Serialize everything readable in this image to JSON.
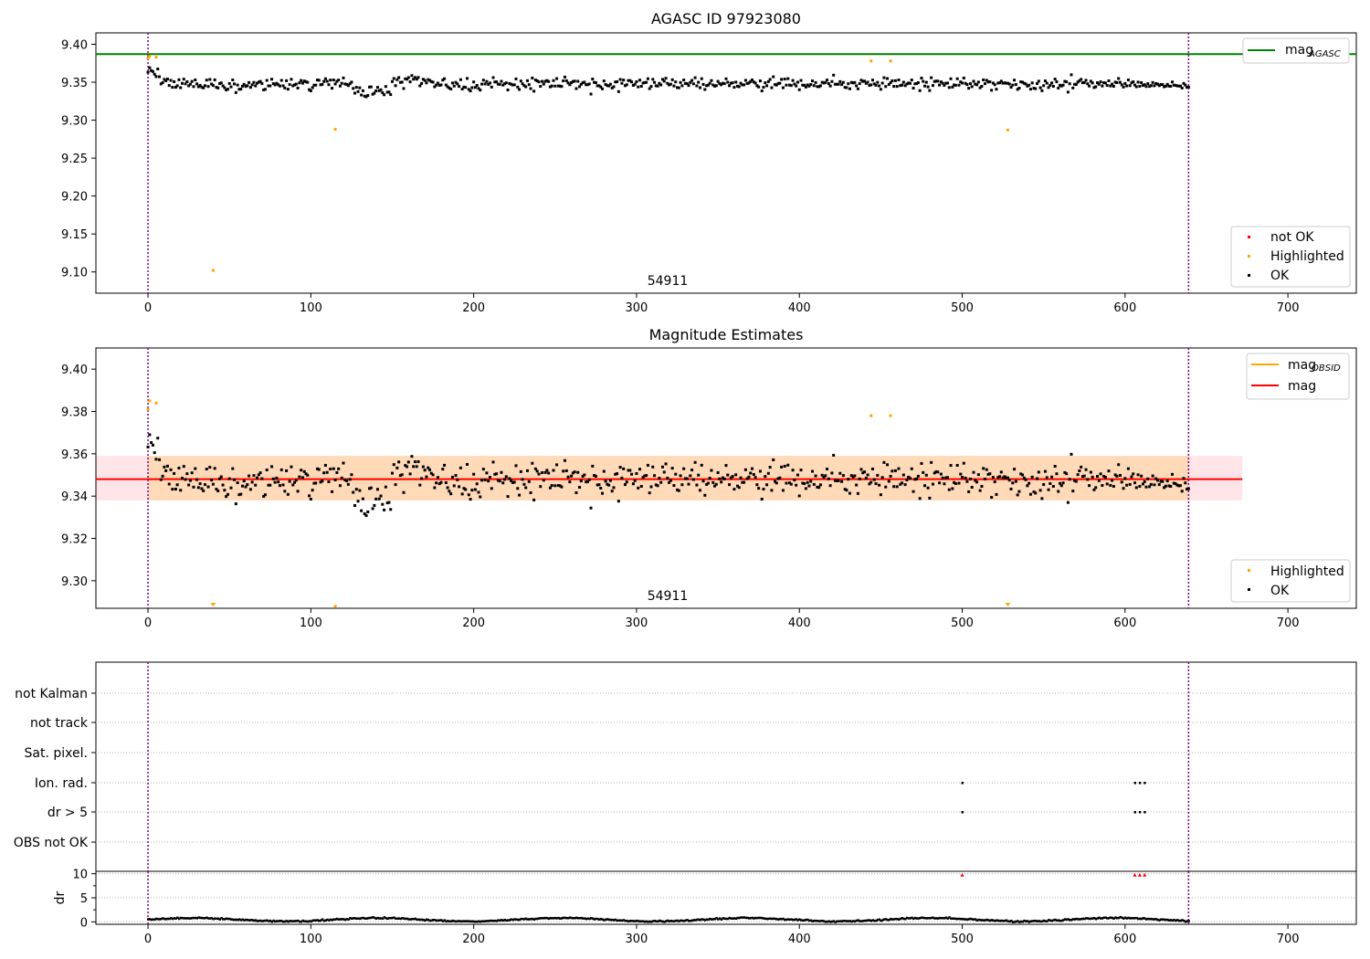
{
  "colors": {
    "ok": "#000000",
    "highlighted": "#ffa500",
    "not_ok": "#ff0000",
    "agasc_line": "#008000",
    "mag_line": "#ff0000",
    "obsid_line": "#ffa500",
    "band_orange": "#ffdab9",
    "band_pink": "#ffe4e8",
    "obs_boundary": "#800080",
    "grid": "#b0b0b0"
  },
  "chart_data": [
    {
      "type": "scatter",
      "title": "AGASC ID 97923080",
      "xlabel": "",
      "ylabel": "",
      "xlim": [
        -32,
        742
      ],
      "ylim": [
        9.072,
        9.415
      ],
      "xticks": [
        0,
        100,
        200,
        300,
        400,
        500,
        600,
        700
      ],
      "yticks": [
        9.1,
        9.15,
        9.2,
        9.25,
        9.3,
        9.35,
        9.4
      ],
      "ytick_labels": [
        "9.10",
        "9.15",
        "9.20",
        "9.25",
        "9.30",
        "9.35",
        "9.40"
      ],
      "annotation": {
        "text": "54911",
        "x": 319
      },
      "obs_boundaries": [
        0,
        639
      ],
      "reference_line": {
        "name": "mag",
        "name_sub": "AGASC",
        "y": 9.387
      },
      "legend_lines": [
        {
          "label": "mag",
          "sub": "AGASC",
          "color": "#008000"
        }
      ],
      "legend_points": [
        {
          "label": "not OK",
          "color": "#ff0000"
        },
        {
          "label": "Highlighted",
          "color": "#ffa500"
        },
        {
          "label": "OK",
          "color": "#000000"
        }
      ],
      "ok_points": {
        "n": 640,
        "x_range": [
          0,
          639
        ],
        "mean": 9.348,
        "scatter": 0.008
      },
      "highlighted_points": [
        [
          0,
          9.382
        ],
        [
          1,
          9.384
        ],
        [
          5,
          9.383
        ],
        [
          40,
          9.102
        ],
        [
          115,
          9.288
        ],
        [
          444,
          9.378
        ],
        [
          456,
          9.378
        ],
        [
          528,
          9.287
        ]
      ]
    },
    {
      "type": "scatter",
      "title": "Magnitude Estimates",
      "xlabel": "",
      "ylabel": "",
      "xlim": [
        -32,
        742
      ],
      "ylim": [
        9.287,
        9.41
      ],
      "xticks": [
        0,
        100,
        200,
        300,
        400,
        500,
        600,
        700
      ],
      "yticks": [
        9.3,
        9.32,
        9.34,
        9.36,
        9.38,
        9.4
      ],
      "ytick_labels": [
        "9.30",
        "9.32",
        "9.34",
        "9.36",
        "9.38",
        "9.40"
      ],
      "annotation": {
        "text": "54911",
        "x": 319
      },
      "obs_boundaries": [
        0,
        639
      ],
      "mag": {
        "name": "mag",
        "y": 9.348,
        "band": [
          9.338,
          9.359
        ],
        "x_range": [
          -32,
          672
        ]
      },
      "mag_obsid": {
        "name": "mag",
        "name_sub": "OBSID",
        "y": 9.348,
        "band": [
          9.338,
          9.359
        ],
        "x_range": [
          0,
          639
        ]
      },
      "legend_lines": [
        {
          "label": "mag",
          "sub": "OBSID",
          "color": "#ffa500"
        },
        {
          "label": "mag",
          "sub": "",
          "color": "#ff0000"
        }
      ],
      "legend_points": [
        {
          "label": "Highlighted",
          "color": "#ffa500"
        },
        {
          "label": "OK",
          "color": "#000000"
        }
      ],
      "ok_points": {
        "n": 640,
        "x_range": [
          0,
          639
        ],
        "mean": 9.348,
        "scatter": 0.008
      },
      "highlighted_points": [
        [
          0,
          9.381
        ],
        [
          1,
          9.385
        ],
        [
          5,
          9.384
        ],
        [
          444,
          9.378
        ],
        [
          456,
          9.378
        ],
        [
          115,
          9.288
        ]
      ],
      "off_scale_markers": [
        40,
        528
      ]
    },
    {
      "type": "scatter",
      "title": "",
      "xlabel": "",
      "ylabel": "",
      "categories": [
        "not Kalman",
        "not track",
        "Sat. pixel.",
        "Ion. rad.",
        "dr > 5",
        "OBS not OK"
      ],
      "flag_points": [
        {
          "category": "Ion. rad.",
          "x": [
            500,
            606,
            609,
            612
          ]
        },
        {
          "category": "dr > 5",
          "x": [
            500,
            606,
            609,
            612
          ]
        }
      ],
      "obs_boundaries": [
        0,
        639
      ]
    },
    {
      "type": "scatter",
      "title": "",
      "xlabel": "",
      "ylabel": "dr",
      "xlim": [
        -32,
        742
      ],
      "ylim": [
        -0.5,
        10.5
      ],
      "xticks": [
        0,
        100,
        200,
        300,
        400,
        500,
        600,
        700
      ],
      "yticks": [
        0,
        5,
        10
      ],
      "dr_points": {
        "n": 640,
        "x_range": [
          0,
          639
        ],
        "mean": 0.5,
        "scatter": 0.3
      },
      "dr_flagged": [
        [
          500,
          9.8
        ],
        [
          606,
          9.8
        ],
        [
          609,
          9.8
        ],
        [
          612,
          9.8
        ]
      ],
      "obs_boundaries": [
        0,
        639
      ]
    }
  ]
}
